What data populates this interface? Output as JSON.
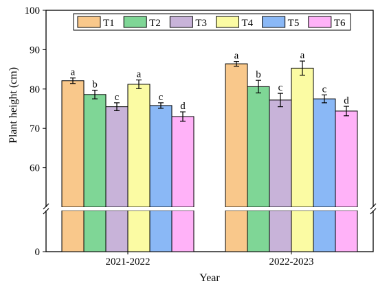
{
  "chart_data": {
    "type": "bar",
    "xlabel": "Year",
    "ylabel": "Plant height (cm)",
    "categories": [
      "2021-2022",
      "2022-2023"
    ],
    "axis_break": [
      0,
      50
    ],
    "ylim_lower": [
      0,
      5
    ],
    "ylim_upper": [
      50,
      100
    ],
    "yticks": [
      0,
      60,
      70,
      80,
      90,
      100
    ],
    "legend_position": "top",
    "series": [
      {
        "name": "T1",
        "color": "#f9c88b",
        "values": [
          82.1,
          86.4
        ],
        "errors": [
          0.7,
          0.6
        ],
        "labels": [
          "a",
          "a"
        ]
      },
      {
        "name": "T2",
        "color": "#7fd696",
        "values": [
          78.6,
          80.6
        ],
        "errors": [
          1.1,
          1.6
        ],
        "labels": [
          "b",
          "b"
        ]
      },
      {
        "name": "T3",
        "color": "#c8b3d9",
        "values": [
          75.5,
          77.2
        ],
        "errors": [
          1.0,
          1.7
        ],
        "labels": [
          "c",
          "c"
        ]
      },
      {
        "name": "T4",
        "color": "#fbfba3",
        "values": [
          81.2,
          85.3
        ],
        "errors": [
          1.1,
          1.8
        ],
        "labels": [
          "a",
          "a"
        ]
      },
      {
        "name": "T5",
        "color": "#8ab8f6",
        "values": [
          75.8,
          77.5
        ],
        "errors": [
          0.7,
          1.0
        ],
        "labels": [
          "c",
          "c"
        ]
      },
      {
        "name": "T6",
        "color": "#ffb2f8",
        "values": [
          73.0,
          74.4
        ],
        "errors": [
          1.2,
          1.2
        ],
        "labels": [
          "d",
          "d"
        ]
      }
    ]
  }
}
